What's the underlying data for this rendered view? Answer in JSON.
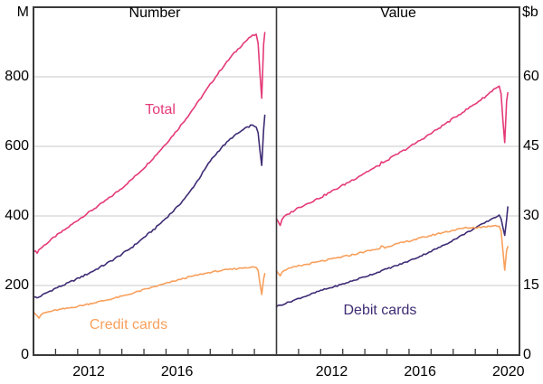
{
  "chart_data": {
    "type": "line",
    "frequency": "monthly",
    "xlim": [
      2010,
      2021
    ],
    "xticks_minor_years": [
      2011,
      2012,
      2013,
      2014,
      2015,
      2016,
      2017,
      2018,
      2019,
      2020
    ],
    "colors": {
      "total": "#E43A78",
      "debit": "#3E2B74",
      "credit": "#F8A05D",
      "grid": "#C9C9C9",
      "frame": "#3A3A3A",
      "text": "#000000"
    },
    "panels": [
      {
        "title": "Number",
        "unit": "M",
        "unit_side": "left",
        "ylim": [
          0,
          1000
        ],
        "yticks": [
          0,
          200,
          400,
          600,
          800
        ],
        "xticks_labeled": [
          2012,
          2016
        ],
        "series_keys": [
          "total_number",
          "debit_number",
          "credit_number"
        ]
      },
      {
        "title": "Value",
        "unit": "$b",
        "unit_side": "right",
        "ylim": [
          0,
          75
        ],
        "yticks": [
          0,
          15,
          30,
          45,
          60
        ],
        "xticks_labeled": [
          2012,
          2016,
          2020
        ],
        "series_keys": [
          "total_value",
          "debit_value",
          "credit_value"
        ]
      }
    ],
    "series": {
      "total_number": {
        "name": "Total",
        "color": "#E43A78",
        "noise": 5,
        "points": [
          [
            2010,
            300
          ],
          [
            2010.17,
            295
          ],
          [
            2010.25,
            303
          ],
          [
            2010.5,
            316
          ],
          [
            2011,
            342
          ],
          [
            2011.5,
            364
          ],
          [
            2012,
            388
          ],
          [
            2012.5,
            410
          ],
          [
            2013,
            432
          ],
          [
            2013.5,
            455
          ],
          [
            2014,
            480
          ],
          [
            2014.5,
            508
          ],
          [
            2015,
            538
          ],
          [
            2015.5,
            572
          ],
          [
            2016,
            608
          ],
          [
            2016.5,
            646
          ],
          [
            2017,
            688
          ],
          [
            2017.5,
            732
          ],
          [
            2018,
            778
          ],
          [
            2018.5,
            822
          ],
          [
            2019,
            862
          ],
          [
            2019.5,
            896
          ],
          [
            2019.83,
            915
          ],
          [
            2020.0,
            920
          ],
          [
            2020.08,
            922
          ],
          [
            2020.17,
            893
          ],
          [
            2020.33,
            735
          ],
          [
            2020.42,
            898
          ],
          [
            2020.47,
            928
          ]
        ]
      },
      "debit_number": {
        "name": "Debit cards",
        "color": "#3E2B74",
        "noise": 5,
        "points": [
          [
            2010,
            168
          ],
          [
            2010.17,
            164
          ],
          [
            2010.5,
            176
          ],
          [
            2011,
            192
          ],
          [
            2011.5,
            205
          ],
          [
            2012,
            220
          ],
          [
            2012.5,
            235
          ],
          [
            2013,
            252
          ],
          [
            2013.5,
            270
          ],
          [
            2014,
            290
          ],
          [
            2014.5,
            312
          ],
          [
            2015,
            338
          ],
          [
            2015.5,
            364
          ],
          [
            2016,
            394
          ],
          [
            2016.5,
            425
          ],
          [
            2017,
            462
          ],
          [
            2017.5,
            508
          ],
          [
            2018,
            558
          ],
          [
            2018.5,
            596
          ],
          [
            2019,
            626
          ],
          [
            2019.5,
            648
          ],
          [
            2019.83,
            660
          ],
          [
            2020.08,
            658
          ],
          [
            2020.17,
            636
          ],
          [
            2020.33,
            540
          ],
          [
            2020.42,
            652
          ],
          [
            2020.47,
            688
          ]
        ]
      },
      "credit_number": {
        "name": "Credit cards",
        "color": "#F8A05D",
        "noise": 4,
        "points": [
          [
            2010,
            126
          ],
          [
            2010.25,
            107
          ],
          [
            2010.42,
            120
          ],
          [
            2011,
            129
          ],
          [
            2011.5,
            134
          ],
          [
            2012,
            140
          ],
          [
            2012.5,
            147
          ],
          [
            2013,
            154
          ],
          [
            2013.5,
            161
          ],
          [
            2014,
            169
          ],
          [
            2014.5,
            178
          ],
          [
            2015,
            188
          ],
          [
            2015.5,
            197
          ],
          [
            2016,
            206
          ],
          [
            2016.5,
            215
          ],
          [
            2017,
            224
          ],
          [
            2017.5,
            231
          ],
          [
            2018,
            238
          ],
          [
            2018.5,
            243
          ],
          [
            2019,
            247
          ],
          [
            2019.5,
            251
          ],
          [
            2019.83,
            253
          ],
          [
            2020.08,
            252
          ],
          [
            2020.17,
            242
          ],
          [
            2020.33,
            172
          ],
          [
            2020.42,
            220
          ],
          [
            2020.47,
            234
          ]
        ]
      },
      "total_value": {
        "name": "Total",
        "color": "#E43A78",
        "noise": 0.4,
        "points": [
          [
            2010,
            29.5
          ],
          [
            2010.17,
            28.0
          ],
          [
            2010.29,
            29.6
          ],
          [
            2010.5,
            30.3
          ],
          [
            2011,
            31.8
          ],
          [
            2011.5,
            32.9
          ],
          [
            2012,
            34.0
          ],
          [
            2012.5,
            35.3
          ],
          [
            2013,
            36.6
          ],
          [
            2013.5,
            37.9
          ],
          [
            2014,
            39.3
          ],
          [
            2014.7,
            41.0
          ],
          [
            2014.78,
            42.0
          ],
          [
            2014.86,
            41.2
          ],
          [
            2015,
            42.0
          ],
          [
            2015.5,
            43.4
          ],
          [
            2016,
            44.8
          ],
          [
            2016.5,
            46.3
          ],
          [
            2017,
            47.8
          ],
          [
            2017.5,
            49.4
          ],
          [
            2018,
            51.0
          ],
          [
            2018.5,
            52.6
          ],
          [
            2019,
            54.2
          ],
          [
            2019.5,
            55.9
          ],
          [
            2019.83,
            57.3
          ],
          [
            2020.0,
            57.8
          ],
          [
            2020.08,
            58.0
          ],
          [
            2020.17,
            56.2
          ],
          [
            2020.33,
            45.3
          ],
          [
            2020.42,
            55.0
          ],
          [
            2020.47,
            56.5
          ]
        ]
      },
      "debit_value": {
        "name": "Debit cards",
        "color": "#3E2B74",
        "noise": 0.3,
        "points": [
          [
            2010,
            10.5
          ],
          [
            2010.5,
            11.3
          ],
          [
            2011,
            12.2
          ],
          [
            2011.5,
            13.0
          ],
          [
            2012,
            13.9
          ],
          [
            2012.5,
            14.6
          ],
          [
            2013,
            15.3
          ],
          [
            2013.5,
            16.1
          ],
          [
            2014,
            16.9
          ],
          [
            2014.5,
            17.7
          ],
          [
            2015,
            18.6
          ],
          [
            2015.5,
            19.4
          ],
          [
            2016,
            20.3
          ],
          [
            2016.5,
            21.3
          ],
          [
            2017,
            22.4
          ],
          [
            2017.5,
            23.5
          ],
          [
            2018,
            24.8
          ],
          [
            2018.5,
            26.1
          ],
          [
            2019,
            27.4
          ],
          [
            2019.5,
            28.7
          ],
          [
            2019.83,
            29.6
          ],
          [
            2020.08,
            30.1
          ],
          [
            2020.17,
            29.2
          ],
          [
            2020.33,
            25.8
          ],
          [
            2020.42,
            29.5
          ],
          [
            2020.47,
            32.0
          ]
        ]
      },
      "credit_value": {
        "name": "Credit cards",
        "color": "#F8A05D",
        "noise": 0.35,
        "points": [
          [
            2010,
            18.3
          ],
          [
            2010.17,
            17.2
          ],
          [
            2010.33,
            18.3
          ],
          [
            2011,
            19.2
          ],
          [
            2011.5,
            19.7
          ],
          [
            2012,
            20.2
          ],
          [
            2012.5,
            20.7
          ],
          [
            2013,
            21.2
          ],
          [
            2013.5,
            21.7
          ],
          [
            2014,
            22.3
          ],
          [
            2014.7,
            23.0
          ],
          [
            2014.78,
            23.8
          ],
          [
            2014.86,
            23.1
          ],
          [
            2015,
            23.4
          ],
          [
            2015.5,
            24.0
          ],
          [
            2016,
            24.6
          ],
          [
            2016.5,
            25.2
          ],
          [
            2017,
            25.8
          ],
          [
            2017.5,
            26.4
          ],
          [
            2018,
            26.9
          ],
          [
            2018.5,
            27.4
          ],
          [
            2019,
            27.5
          ],
          [
            2019.5,
            27.7
          ],
          [
            2019.92,
            28.0
          ],
          [
            2020.08,
            27.8
          ],
          [
            2020.17,
            26.8
          ],
          [
            2020.33,
            18.2
          ],
          [
            2020.42,
            22.6
          ],
          [
            2020.47,
            23.3
          ]
        ]
      }
    },
    "annotations": [
      {
        "text": "Total",
        "color": "#E43A78",
        "panel": 0,
        "x": 2015.74,
        "y": 704
      },
      {
        "text": "Credit cards",
        "color": "#F8A05D",
        "panel": 0,
        "x": 2014.3,
        "y": 86
      },
      {
        "text": "Debit cards",
        "color": "#3E2B74",
        "panel": 1,
        "x": 2014.69,
        "y": 9.5
      }
    ]
  }
}
